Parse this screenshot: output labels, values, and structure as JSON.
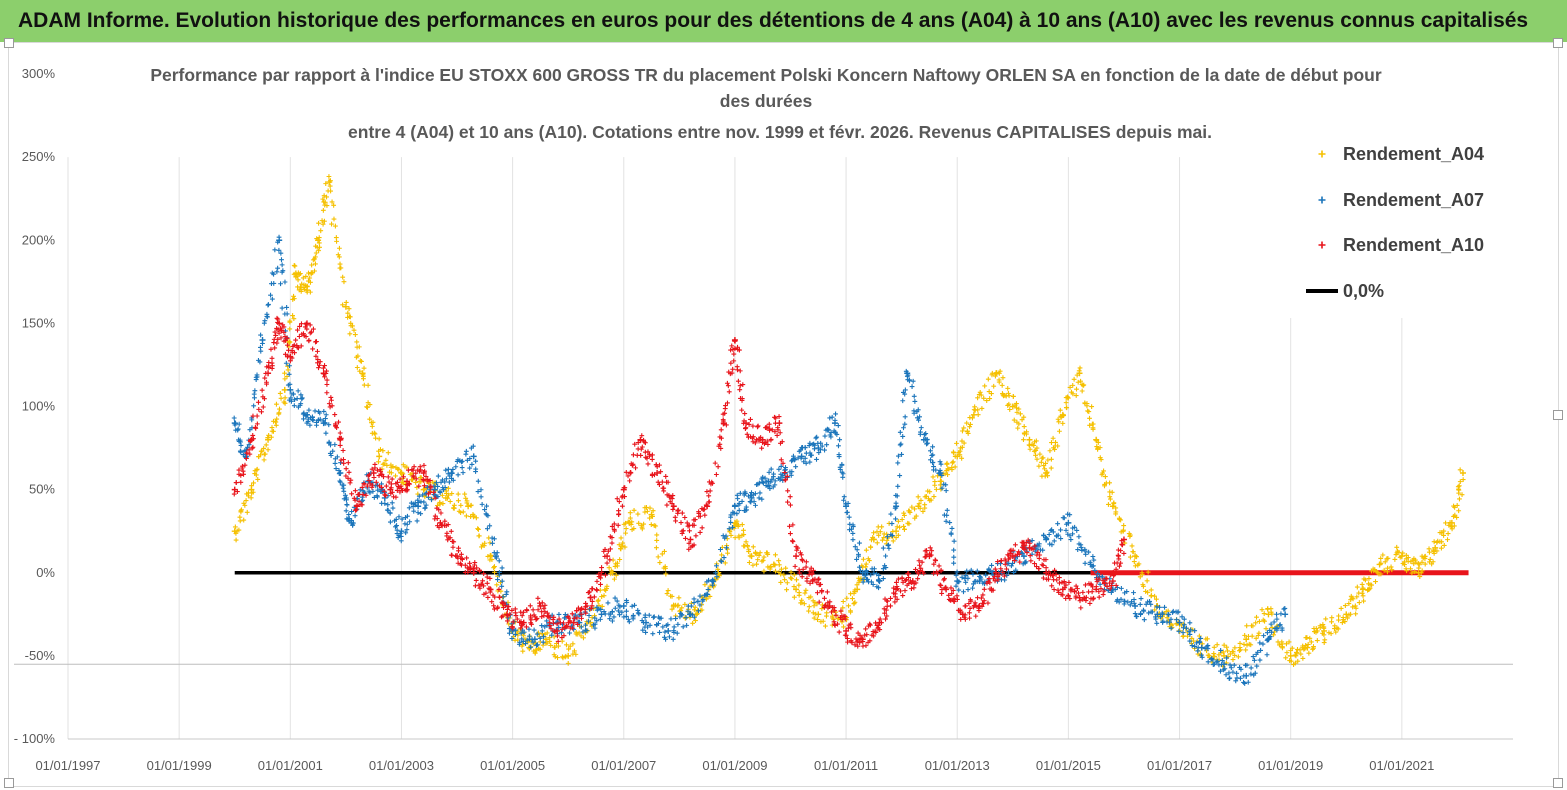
{
  "banner": {
    "title": "ADAM Informe. Evolution historique des performances en euros pour des détentions de 4 ans (A04) à 10 ans (A10) avec les revenus connus capitalisés"
  },
  "chart_data": {
    "type": "scatter",
    "title_lines": [
      "Performance par rapport à l'indice EU STOXX 600 GROSS TR  du placement Polski Koncern Naftowy ORLEN SA en fonction de la date de début pour",
      "des durées",
      "entre 4 (A04) et 10 ans (A10). Cotations entre nov. 1999 et févr. 2026. Revenus CAPITALISES depuis mai."
    ],
    "xlabel": "",
    "ylabel": "",
    "x_range": [
      1997.0,
      2023.0
    ],
    "ylim": [
      -100,
      300
    ],
    "y_ticks": [
      -100,
      -50,
      0,
      50,
      100,
      150,
      200,
      250,
      300
    ],
    "y_tick_labels": [
      "- 100%",
      "-50%",
      "0%",
      "50%",
      "100%",
      "150%",
      "200%",
      "250%",
      "300%"
    ],
    "x_ticks": [
      1997,
      1999,
      2001,
      2003,
      2005,
      2007,
      2009,
      2011,
      2013,
      2015,
      2017,
      2019,
      2021
    ],
    "x_tick_labels": [
      "01/01/1997",
      "01/01/1999",
      "01/01/2001",
      "01/01/2003",
      "01/01/2005",
      "01/01/2007",
      "01/01/2009",
      "01/01/2011",
      "01/01/2013",
      "01/01/2015",
      "01/01/2017",
      "01/01/2019",
      "01/01/2021"
    ],
    "grid": "vertical",
    "legend_position": "right",
    "series": [
      {
        "name": "Rendement_A04",
        "color": "#f5c000",
        "marker": "+",
        "x": [
          2000.0,
          2000.3,
          2000.6,
          2000.9,
          2001.1,
          2001.3,
          2001.5,
          2001.7,
          2002.0,
          2002.3,
          2002.6,
          2003.0,
          2003.4,
          2003.8,
          2004.2,
          2004.6,
          2005.0,
          2005.3,
          2005.6,
          2006.0,
          2006.4,
          2006.8,
          2007.1,
          2007.5,
          2007.9,
          2008.3,
          2008.7,
          2009.0,
          2009.3,
          2009.7,
          2010.1,
          2010.5,
          2010.9,
          2011.2,
          2011.5,
          2011.9,
          2012.3,
          2012.7,
          2013.0,
          2013.3,
          2013.7,
          2014.0,
          2014.3,
          2014.6,
          2014.9,
          2015.2,
          2015.5,
          2015.8,
          2016.2,
          2016.6,
          2017.0,
          2017.4,
          2017.8,
          2018.2,
          2018.6,
          2019.0,
          2019.3,
          2019.6,
          2020.0,
          2020.3,
          2020.6,
          2021.0,
          2021.3,
          2021.6,
          2021.9,
          2022.1
        ],
        "y": [
          25,
          50,
          80,
          110,
          180,
          170,
          200,
          235,
          160,
          120,
          70,
          60,
          50,
          45,
          40,
          10,
          -35,
          -45,
          -40,
          -50,
          -30,
          0,
          30,
          35,
          -20,
          -25,
          0,
          30,
          10,
          5,
          -10,
          -25,
          -28,
          -10,
          20,
          25,
          40,
          55,
          70,
          95,
          120,
          100,
          80,
          60,
          95,
          120,
          80,
          40,
          10,
          -20,
          -35,
          -45,
          -50,
          -40,
          -25,
          -50,
          -45,
          -35,
          -25,
          -10,
          5,
          10,
          0,
          15,
          30,
          60
        ]
      },
      {
        "name": "Rendement_A07",
        "color": "#1b75bb",
        "marker": "+",
        "x": [
          2000.0,
          2000.2,
          2000.5,
          2000.8,
          2001.0,
          2001.3,
          2001.6,
          2001.9,
          2002.1,
          2002.4,
          2002.7,
          2003.0,
          2003.3,
          2003.6,
          2003.9,
          2004.3,
          2004.7,
          2005.0,
          2005.4,
          2005.8,
          2006.2,
          2006.6,
          2007.0,
          2007.4,
          2007.8,
          2008.2,
          2008.6,
          2009.0,
          2009.3,
          2009.6,
          2009.9,
          2010.2,
          2010.5,
          2010.8,
          2011.0,
          2011.3,
          2011.6,
          2011.9,
          2012.1,
          2012.4,
          2012.7,
          2013.0,
          2013.4,
          2013.8,
          2014.2,
          2014.6,
          2015.0,
          2015.4,
          2015.8,
          2016.2,
          2016.6,
          2017.0,
          2017.4,
          2017.8,
          2018.2,
          2018.6,
          2018.9
        ],
        "y": [
          90,
          70,
          140,
          200,
          110,
          95,
          90,
          60,
          30,
          55,
          45,
          25,
          40,
          50,
          60,
          70,
          10,
          -35,
          -40,
          -30,
          -30,
          -25,
          -20,
          -30,
          -35,
          -25,
          -5,
          40,
          45,
          55,
          60,
          70,
          75,
          90,
          40,
          0,
          -5,
          40,
          120,
          80,
          60,
          -5,
          -5,
          0,
          10,
          20,
          30,
          5,
          -10,
          -20,
          -25,
          -30,
          -45,
          -55,
          -62,
          -40,
          -25
        ]
      },
      {
        "name": "Rendement_A10",
        "color": "#e8141b",
        "marker": "+",
        "x": [
          2000.0,
          2000.3,
          2000.6,
          2000.8,
          2001.0,
          2001.3,
          2001.6,
          2001.9,
          2002.2,
          2002.5,
          2002.8,
          2003.1,
          2003.4,
          2003.7,
          2004.0,
          2004.3,
          2004.6,
          2004.9,
          2005.2,
          2005.5,
          2005.8,
          2006.1,
          2006.4,
          2006.7,
          2007.0,
          2007.3,
          2007.6,
          2007.9,
          2008.2,
          2008.5,
          2008.8,
          2009.0,
          2009.2,
          2009.5,
          2009.8,
          2010.1,
          2010.4,
          2010.7,
          2011.0,
          2011.3,
          2011.6,
          2011.9,
          2012.2,
          2012.5,
          2012.8,
          2013.1,
          2013.4,
          2013.7,
          2014.0,
          2014.3,
          2014.6,
          2014.9,
          2015.2,
          2015.5,
          2015.8,
          2016.0
        ],
        "y": [
          50,
          80,
          120,
          150,
          130,
          150,
          120,
          80,
          40,
          60,
          50,
          55,
          60,
          30,
          10,
          0,
          -10,
          -25,
          -30,
          -20,
          -35,
          -30,
          -15,
          10,
          50,
          80,
          60,
          40,
          20,
          40,
          90,
          140,
          90,
          80,
          90,
          10,
          -5,
          -20,
          -35,
          -40,
          -30,
          -10,
          -5,
          10,
          -10,
          -25,
          -20,
          0,
          10,
          15,
          0,
          -10,
          -15,
          -10,
          -5,
          20
        ]
      },
      {
        "name": "0,0%",
        "color": "#000000",
        "marker": "line",
        "x": [
          2000.0,
          2015.4
        ],
        "y": [
          0,
          0
        ]
      }
    ],
    "extra_line": {
      "color": "#e8141b",
      "x": [
        2015.4,
        2022.2
      ],
      "y": [
        0,
        0
      ]
    }
  }
}
